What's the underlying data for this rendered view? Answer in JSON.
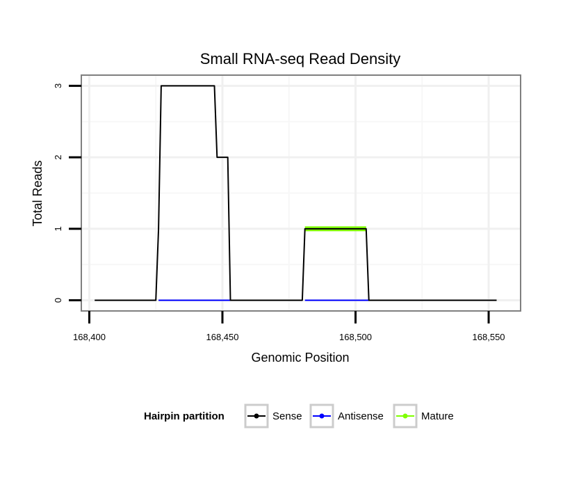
{
  "chart_data": {
    "type": "line",
    "title": "Small RNA-seq Read Density",
    "xlabel": "Genomic Position",
    "ylabel": "Total Reads",
    "xlim": [
      168397,
      168562
    ],
    "ylim": [
      -0.15,
      3.15
    ],
    "x_ticks": [
      168400,
      168450,
      168500,
      168550
    ],
    "x_tick_labels": [
      "168,400",
      "168,450",
      "168,500",
      "168,550"
    ],
    "y_ticks": [
      0,
      1,
      2,
      3
    ],
    "y_tick_labels": [
      "0",
      "1",
      "2",
      "3"
    ],
    "grid": true,
    "legend": {
      "title": "Hairpin partition",
      "placement": "bottom",
      "entries": [
        "Sense",
        "Antisense",
        "Mature"
      ]
    },
    "series": [
      {
        "name": "Sense",
        "color": "#000000",
        "x": [
          168402,
          168425,
          168426,
          168427,
          168447,
          168448,
          168452,
          168453,
          168480,
          168481,
          168504,
          168505,
          168553
        ],
        "y": [
          0,
          0,
          1,
          3,
          3,
          2,
          2,
          0,
          0,
          1,
          1,
          0,
          0
        ]
      },
      {
        "name": "Antisense",
        "color": "#0000ff",
        "x": [
          168426,
          168453,
          null,
          168481,
          168505
        ],
        "y": [
          0,
          0,
          null,
          0,
          0
        ]
      },
      {
        "name": "Mature",
        "color": "#7fff00",
        "x": [
          168481,
          168504
        ],
        "y": [
          1,
          1
        ]
      }
    ]
  }
}
